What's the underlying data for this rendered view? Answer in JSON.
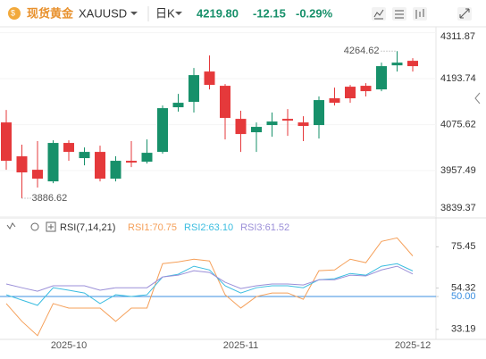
{
  "header": {
    "name": "现货黄金",
    "symbol": "XAUUSD",
    "period": "日K",
    "price": "4219.80",
    "change": "-12.15",
    "change_pct": "-0.29%"
  },
  "chart_data": [
    {
      "type": "candlestick",
      "up_color": "#e5393b",
      "down_color": "#17906a",
      "categories": [
        null,
        null,
        null,
        null,
        "2025-10",
        null,
        null,
        null,
        null,
        null,
        null,
        null,
        null,
        null,
        null,
        "2025-11",
        null,
        null,
        null,
        null,
        null,
        null,
        null,
        null,
        null,
        null,
        "2025-12"
      ],
      "open": [
        3982.7,
        3952.9,
        3936.8,
        4028.6,
        4005.6,
        4005.6,
        3936.8,
        3982.7,
        3978.1,
        4003.3,
        4118.0,
        4131.8,
        4202.9,
        4177.7,
        4092.8,
        4051.5,
        4069.9,
        4083.6,
        4085.9,
        4072.2,
        4138.7,
        4131.8,
        4143.3,
        4161.6,
        4225.9,
        4235.0,
        4225.9
      ],
      "high": [
        4113.4,
        4024.0,
        4033.2,
        4035.4,
        4035.4,
        4017.1,
        4021.7,
        3994.2,
        4033.2,
        4037.7,
        4124.9,
        4154.7,
        4221.3,
        4253.4,
        4180.0,
        4111.2,
        4081.3,
        4106.6,
        4115.7,
        4097.4,
        4147.9,
        4170.8,
        4177.7,
        4182.3,
        4235.0,
        4264.62,
        4246.5
      ],
      "low": [
        3959.7,
        3886.62,
        3913.9,
        3925.3,
        3982.7,
        3971.2,
        3929.9,
        3929.9,
        3966.6,
        3975.8,
        4001.0,
        4108.9,
        4106.6,
        4166.2,
        4037.7,
        4005.6,
        4005.6,
        4044.6,
        4046.9,
        4033.2,
        4040.0,
        4124.9,
        4131.8,
        4147.9,
        4161.6,
        4212.1,
        4212.1
      ],
      "close": [
        4081.3,
        3994.2,
        3959.7,
        3929.9,
        4028.6,
        3989.6,
        4005.6,
        3936.8,
        3982.7,
        3980.4,
        4005.6,
        4120.3,
        4134.1,
        4212.1,
        4175.4,
        4090.5,
        4056.1,
        4074.5,
        4090.5,
        4081.3,
        4074.5,
        4143.3,
        4173.1,
        4175.4,
        4166.2,
        4228.0,
        4239.6
      ],
      "annotations": {
        "max": "4264.62",
        "min": "3886.62"
      },
      "ylim": [
        3836,
        4327
      ],
      "yticks": [
        3839.37,
        3957.49,
        4075.62,
        4193.74,
        4311.87
      ]
    },
    {
      "type": "line",
      "title": "RSI(7,14,21)",
      "series": [
        {
          "name": "RSI1:70.75",
          "color": "#f5a05a",
          "values": [
            46.4,
            37.3,
            30.0,
            46.4,
            44.1,
            44.1,
            44.1,
            37.3,
            44.1,
            44.1,
            66.8,
            67.7,
            69.1,
            68.2,
            50.9,
            44.1,
            50.0,
            51.8,
            51.8,
            48.6,
            63.2,
            63.6,
            69.1,
            67.3,
            78.2,
            80.0,
            70.75
          ]
        },
        {
          "name": "RSI2:63.10",
          "color": "#3bbde0",
          "values": [
            50.9,
            48.2,
            45.5,
            54.5,
            53.2,
            51.8,
            46.4,
            50.9,
            50.0,
            50.9,
            60.0,
            61.4,
            65.5,
            63.6,
            55.5,
            51.8,
            54.5,
            55.5,
            55.5,
            54.5,
            58.6,
            59.1,
            61.8,
            60.9,
            65.5,
            66.8,
            63.1
          ]
        },
        {
          "name": "RSI3:61.52",
          "color": "#9b8fd8",
          "values": [
            56.4,
            54.5,
            52.7,
            55.5,
            55.5,
            55.5,
            53.2,
            54.5,
            54.5,
            54.5,
            60.0,
            60.9,
            63.2,
            62.3,
            57.3,
            54.1,
            55.5,
            56.4,
            56.4,
            55.9,
            58.6,
            58.6,
            60.9,
            60.5,
            63.6,
            65.5,
            61.52
          ]
        }
      ],
      "ref_line": 50,
      "ref_line_color": "#3b8fe0",
      "ylim": [
        29,
        82
      ],
      "yticks": [
        33.19,
        {
          "value": 50,
          "label": "50.00"
        },
        54.32,
        75.45
      ]
    }
  ]
}
